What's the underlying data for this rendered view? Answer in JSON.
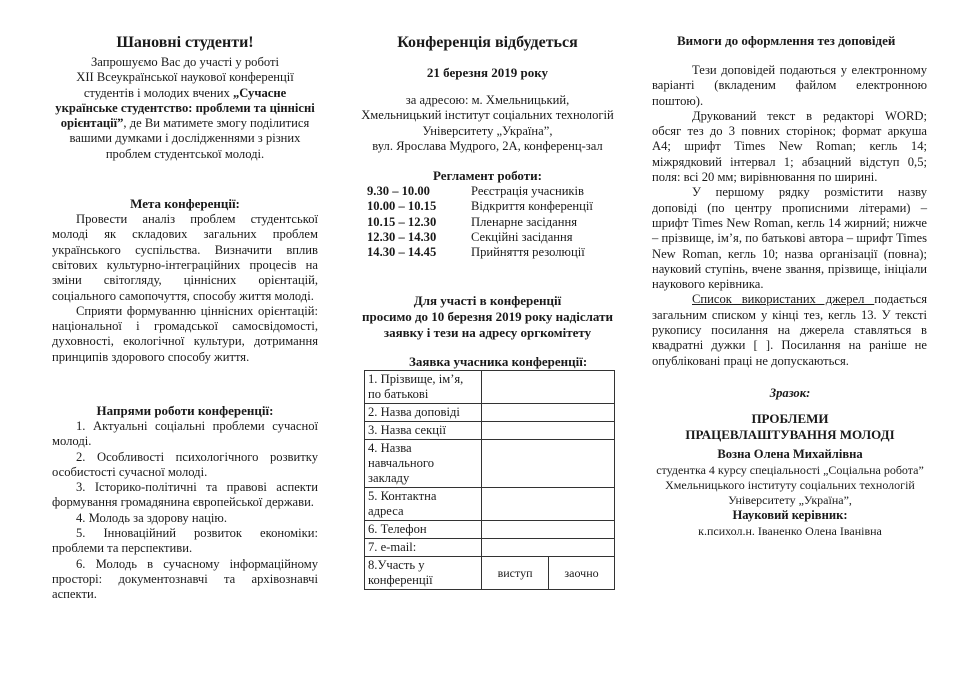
{
  "left": {
    "greeting": "Шановні студенти!",
    "intro_lines": [
      "Запрошуємо Вас до участі у роботі",
      "XII Всеукраїнської наукової конференції",
      "студентів і молодих вчених"
    ],
    "conference_name": "„Сучасне українське студентство: проблеми та ціннісні орієнтації”",
    "intro_tail": ", де Ви матимете змогу поділитися вашими думками і дослідженнями з різних проблем студентської молоді.",
    "goal_title": "Мета конференції:",
    "goal_paragraphs": [
      "Провести аналіз проблем студентської молоді як складових загальних проблем українського суспільства. Визначити вплив світових культурно-інтеграційних процесів на зміни світогляду, ціннісних орієнтацій, соціального самопочуття, способу життя молоді.",
      "Сприяти формуванню ціннісних орієнтацій: національної і громадської самосвідомості, духовності, екологічної культури, дотримання принципів здорового способу життя."
    ],
    "directions_title": "Напрями роботи конференції:",
    "directions": [
      "1. Актуальні соціальні проблеми сучасної молоді.",
      "2. Особливості психологічного розвитку особистості сучасної молоді.",
      "3. Історико-політичні та правові аспекти формування громадянина європейської держави.",
      "4. Молодь за здорову націю.",
      "5. Інноваційний розвиток економіки: проблеми та перспективи.",
      "6. Молодь в сучасному інформаційному просторі: документознавчі та архівознавчі аспекти."
    ]
  },
  "center": {
    "title": "Конференція відбудеться",
    "date": "21 березня 2019 року",
    "address_lines": [
      "за адресою: м. Хмельницький,",
      "Хмельницький інститут соціальних технологій",
      "Університету „Україна”,",
      "вул. Ярослава Мудрого, 2А, конференц-зал"
    ],
    "schedule_title": "Регламент роботи:",
    "schedule": [
      {
        "time": "9.30 –  10.00",
        "event": "Реєстрація учасників"
      },
      {
        "time": "10.00 – 10.15",
        "event": "Відкриття конференції"
      },
      {
        "time": "10.15 – 12.30",
        "event": "Пленарне засідання"
      },
      {
        "time": "12.30 – 14.30",
        "event": "Секційні засідання"
      },
      {
        "time": "14.30 – 14.45",
        "event": "Прийняття резолюції"
      }
    ],
    "participation_lines": [
      "Для участі в конференції",
      "просимо до 10 березня 2019 року надіслати",
      "заявку і тези на адресу оргкомітету"
    ],
    "form_title": "Заявка  учасника конференції:",
    "form_rows": [
      "1. Прізвище, ім’я, по батькові",
      "2. Назва доповіді",
      "3. Назва секції",
      "4. Назва навчального закладу",
      "5. Контактна адреса",
      "6. Телефон",
      "7. e-mail:",
      "8.Участь у конференції"
    ],
    "participation_options": [
      "виступ",
      "заочно"
    ]
  },
  "right": {
    "title": "Вимоги до оформлення тез доповідей",
    "p1": "Тези доповідей подаються у електронному варіанті (вкладеним файлом електронною поштою).",
    "p2": "Друкований текст в редакторі WORD; обсяг тез до 3 повних сторінок; формат аркуша А4; шрифт Times New Roman; кегль 14; міжрядковий інтервал 1; абзацний відступ 0,5; поля: всі 20 мм; вирівнювання по ширині.",
    "p3": "У першому рядку розмістити назву доповіді (по центру прописними літерами) – шрифт Times New Roman, кегль 14 жирний; нижче – прізвище, ім’я, по батькові автора – шрифт Times New Roman, кегль 10; назва організації (повна); науковий ступінь, вчене звання, прізвище, ініціали  наукового керівника.",
    "p4_underlined": "Список використаних джерел ",
    "p4_rest": "подається загальним списком у кінці тез, кегль 13. У тексті рукопису посилання на джерела ставляться в квадратні дужки [ ]. Посилання на раніше не опубліковані праці не допускаються.",
    "sample_label": "Зразок:",
    "sample_title": "ПРОБЛЕМИ ПРАЦЕВЛАШТУВАННЯ МОЛОДІ",
    "sample_author": "Возна Олена Михайлівна",
    "sample_lines": [
      "студентка 4 курсу спеціальності „Соціальна робота”",
      "Хмельницького інституту соціальних технологій",
      "Університету „Україна”,"
    ],
    "supervisor_label": "Науковий керівник:",
    "supervisor": "к.психол.н. Іваненко Олена Іванівна"
  }
}
